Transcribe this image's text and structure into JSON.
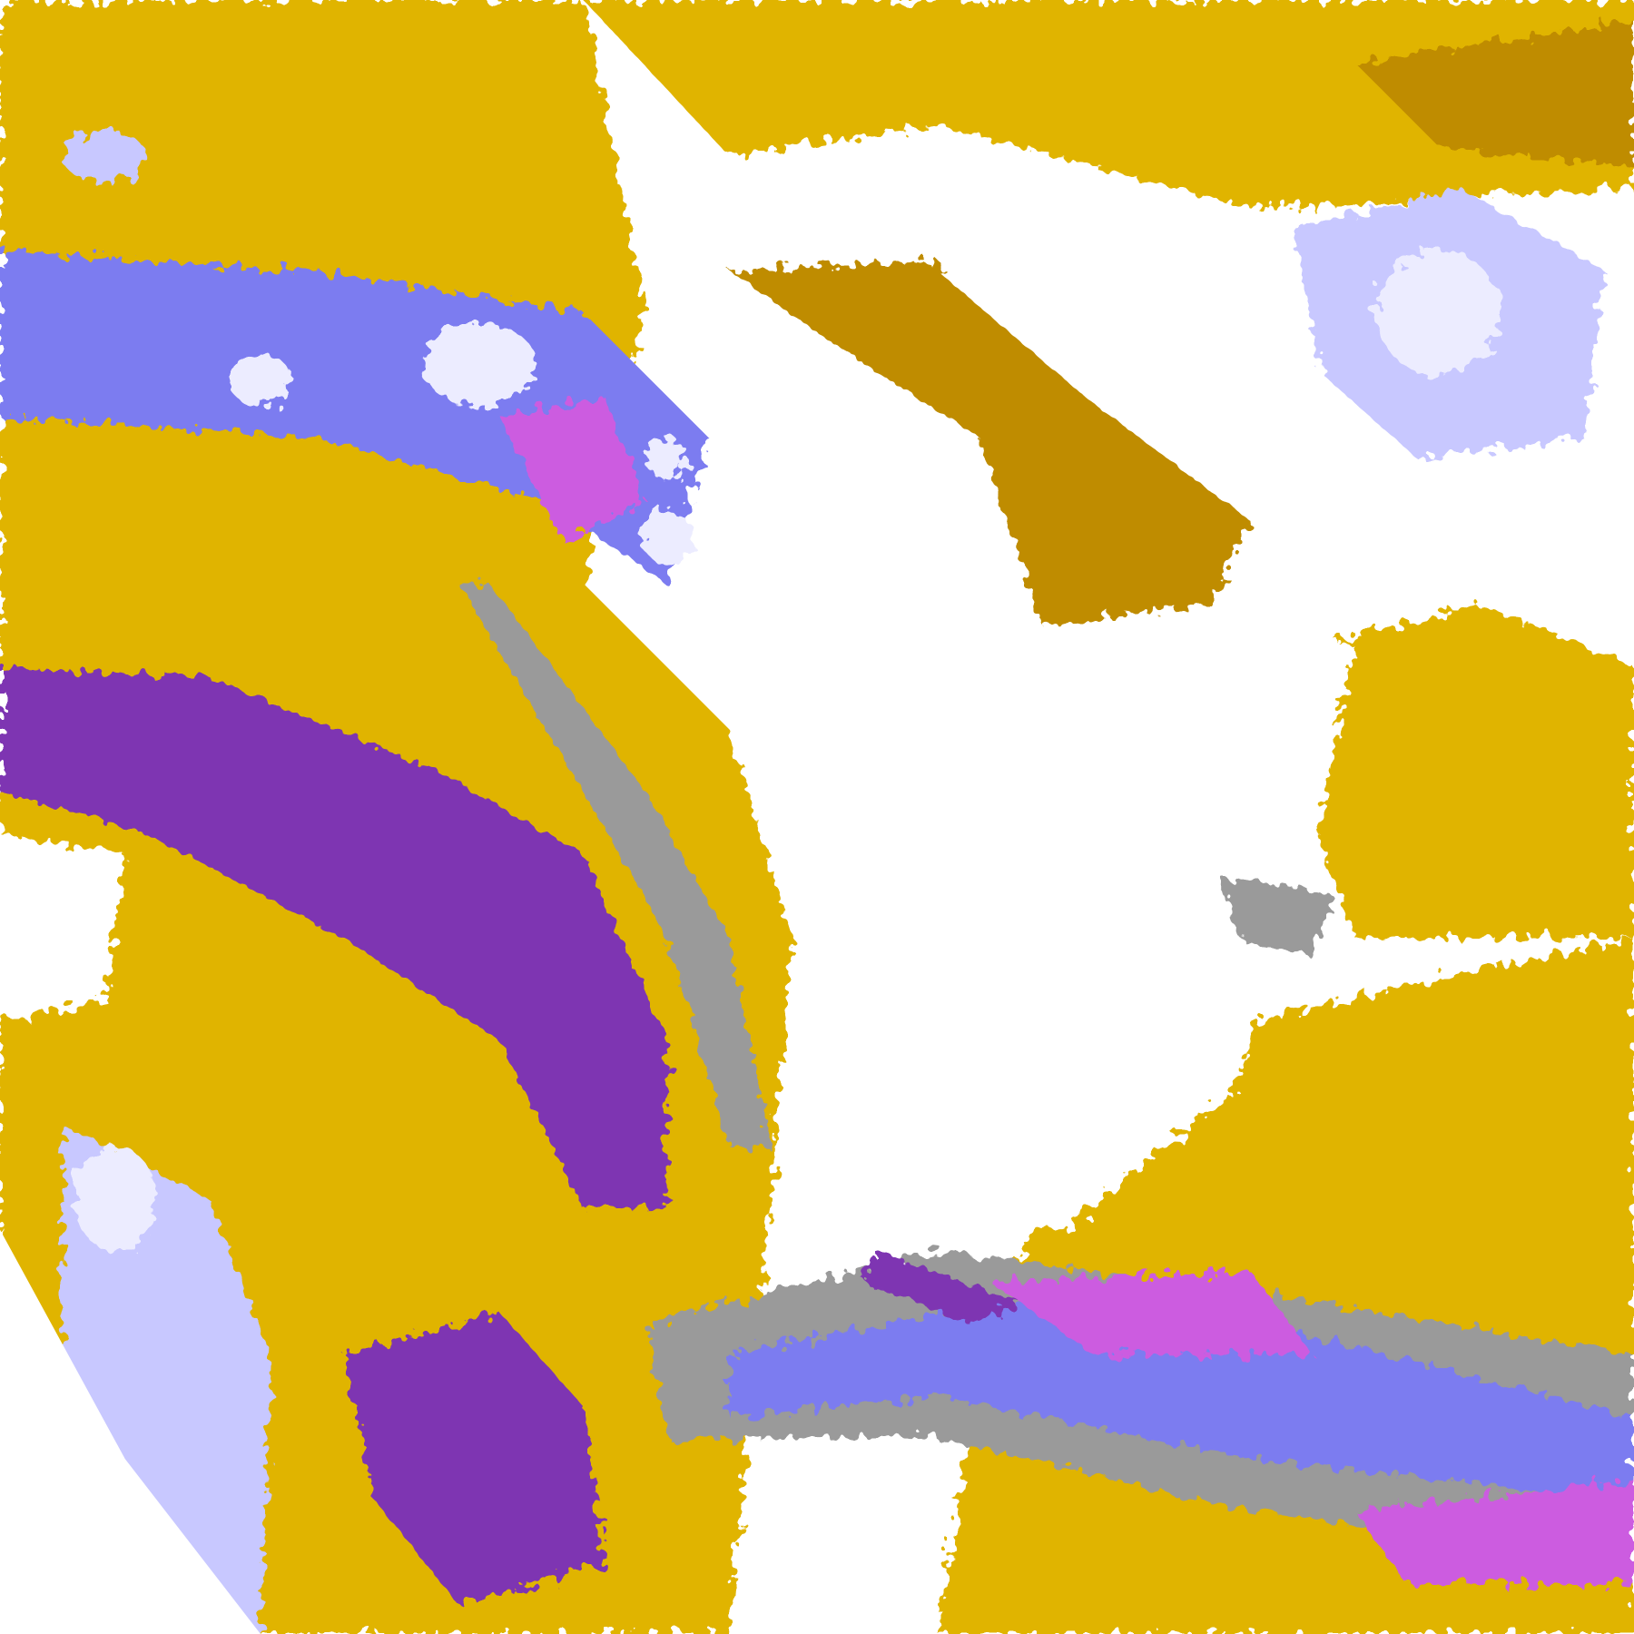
{
  "image": {
    "icon": "satellite-classification-image",
    "palette": {
      "background": "#ffffff",
      "clear": "#ffffff",
      "gold": "#e0b400",
      "dark_gold": "#bf8c00",
      "purple": "#7e34b2",
      "magenta": "#cc5ce0",
      "periwinkle": "#7c7cf0",
      "lavender": "#c8c8ff",
      "pale_lavender": "#ececff",
      "gray": "#9a9a9a",
      "no_data": "#ffffff"
    }
  }
}
